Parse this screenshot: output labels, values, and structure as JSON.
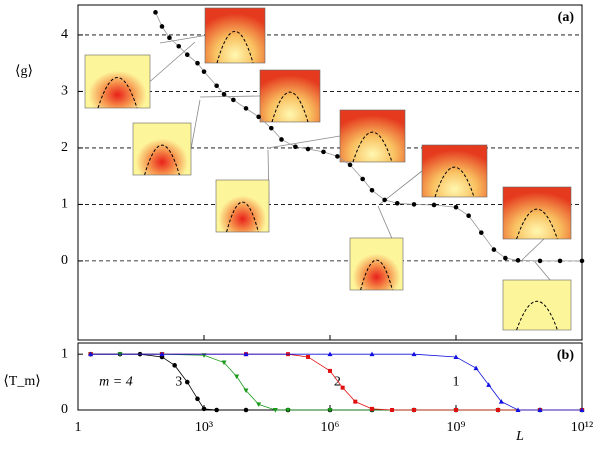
{
  "chart_data": [
    {
      "type": "scatter",
      "panel_label": "(a)",
      "ylabel": "⟨g⟩",
      "xscale": "log",
      "xlim": [
        1,
        1000000000000.0
      ],
      "ylim": [
        -1.4,
        4.53
      ],
      "yticks": [
        0,
        1,
        2,
        3,
        4
      ],
      "grid": true,
      "series": [
        {
          "color": "#000000",
          "line_color": "#999999",
          "marker": "circle",
          "x": [
            70,
            100,
            150,
            250,
            400,
            700,
            1000,
            2000,
            3000,
            5000,
            10000.0,
            20000.0,
            40000.0,
            70000.0,
            150000.0,
            300000.0,
            700000.0,
            1500000.0,
            3000000.0,
            6000000.0,
            10000000.0,
            20000000.0,
            40000000.0,
            100000000.0,
            300000000.0,
            1000000000.0,
            2000000000.0,
            4000000000.0,
            8000000000.0,
            15000000000.0,
            30000000000.0,
            100000000000.0,
            300000000000.0,
            1000000000000.0
          ],
          "values": [
            4.4,
            4.15,
            3.95,
            3.8,
            3.65,
            3.5,
            3.35,
            3.1,
            2.95,
            2.85,
            2.7,
            2.55,
            2.35,
            2.15,
            2.02,
            1.98,
            1.93,
            1.85,
            1.7,
            1.45,
            1.25,
            1.08,
            1.02,
            1.0,
            0.99,
            0.95,
            0.8,
            0.5,
            0.2,
            0.05,
            0.01,
            0,
            0,
            0
          ]
        }
      ]
    },
    {
      "type": "scatter",
      "panel_label": "(b)",
      "ylabel": "⟨T_m⟩",
      "xlabel": "L",
      "xscale": "log",
      "xlim": [
        1,
        1000000000000.0
      ],
      "ylim": [
        0,
        1.2
      ],
      "yticks": [
        0,
        1
      ],
      "xticks": [
        {
          "value": 1,
          "label": "1"
        },
        {
          "value": 1000,
          "label": "10³"
        },
        {
          "value": 1000000,
          "label": "10⁶"
        },
        {
          "value": 1000000000,
          "label": "10⁹"
        },
        {
          "value": 1000000000000,
          "label": "10¹²"
        }
      ],
      "annotations": [
        {
          "text": "m = 4",
          "x": 8,
          "y": 0.5
        },
        {
          "text": "3",
          "x": 250,
          "y": 0.5
        },
        {
          "text": "2",
          "x": 1500000,
          "y": 0.5
        },
        {
          "text": "1",
          "x": 1000000000,
          "y": 0.5
        }
      ],
      "series": [
        {
          "name": "4",
          "color": "#000000",
          "marker": "circle",
          "x": [
            2,
            10,
            30,
            100,
            200,
            400,
            700,
            1000,
            2000,
            10000.0,
            100000.0,
            1000000.0,
            10000000.0,
            100000000.0,
            1000000000.0,
            10000000000.0,
            100000000000.0,
            1000000000000.0
          ],
          "values": [
            1,
            1,
            1,
            0.95,
            0.8,
            0.5,
            0.2,
            0.02,
            0,
            0,
            0,
            0,
            0,
            0,
            0,
            0,
            0,
            0
          ]
        },
        {
          "name": "3",
          "color": "#1a9a1a",
          "marker": "tri-down",
          "x": [
            2,
            10,
            100,
            1000,
            3000,
            6000,
            10000.0,
            20000.0,
            50000.0,
            100000.0,
            1000000.0,
            10000000.0,
            100000000.0,
            1000000000.0,
            10000000000.0,
            100000000000.0,
            1000000000000.0
          ],
          "values": [
            1,
            1,
            1,
            0.98,
            0.85,
            0.6,
            0.35,
            0.1,
            0,
            0,
            0,
            0,
            0,
            0,
            0,
            0,
            0
          ]
        },
        {
          "name": "2",
          "color": "#e01010",
          "marker": "square",
          "x": [
            2,
            100,
            10000.0,
            100000.0,
            300000.0,
            1000000.0,
            2000000.0,
            4000000.0,
            10000000.0,
            30000000.0,
            100000000.0,
            1000000000.0,
            10000000000.0,
            100000000000.0,
            1000000000000.0
          ],
          "values": [
            1,
            1,
            1,
            1,
            0.95,
            0.7,
            0.4,
            0.15,
            0.02,
            0,
            0,
            0,
            0,
            0,
            0
          ]
        },
        {
          "name": "1",
          "color": "#1010e0",
          "marker": "tri-up",
          "x": [
            2,
            100,
            10000.0,
            1000000.0,
            10000000.0,
            100000000.0,
            1000000000.0,
            3000000000.0,
            6000000000.0,
            12000000000.0,
            30000000000.0,
            100000000000.0,
            1000000000000.0
          ],
          "values": [
            1,
            1,
            1,
            1,
            1,
            1,
            0.95,
            0.75,
            0.45,
            0.15,
            0,
            0,
            0
          ]
        }
      ]
    }
  ]
}
